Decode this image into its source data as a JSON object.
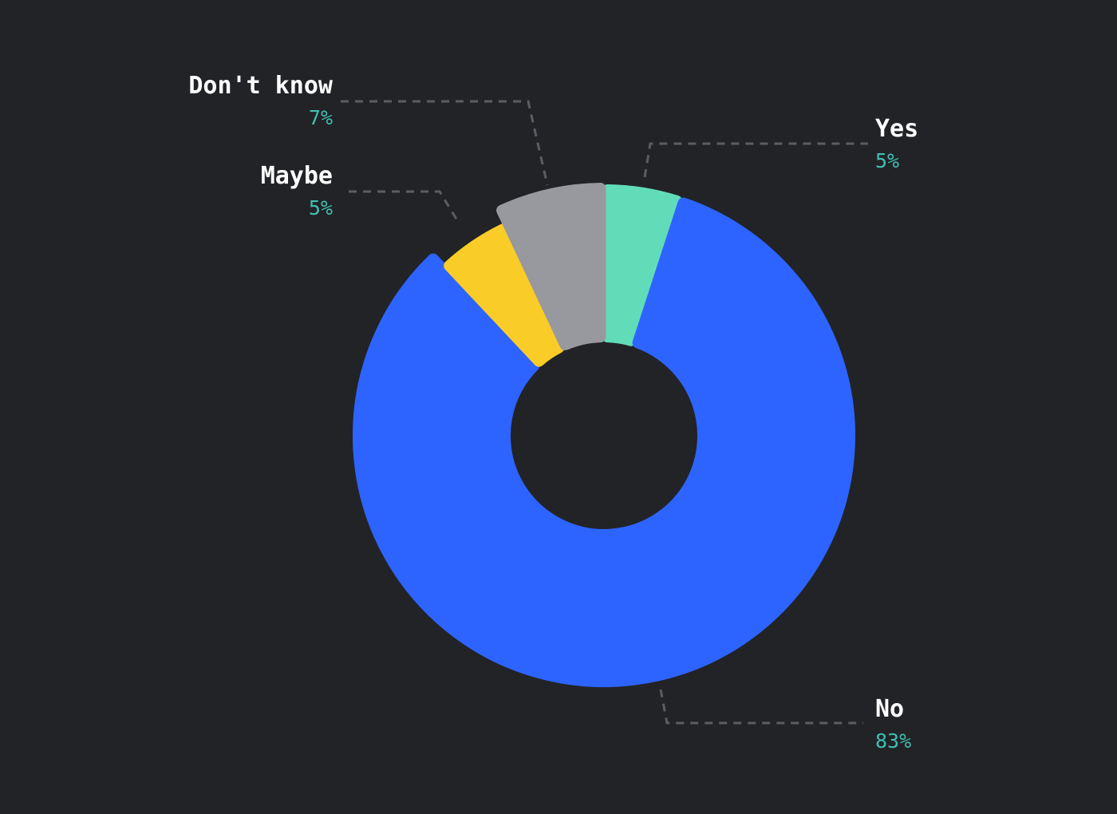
{
  "chart_data": {
    "type": "pie",
    "donut": true,
    "categories": [
      "No",
      "Maybe",
      "Don't know",
      "Yes"
    ],
    "values": [
      83,
      5,
      7,
      5
    ],
    "value_labels": [
      "83%",
      "5%",
      "7%",
      "5%"
    ],
    "colors": [
      "#2d64ff",
      "#facc27",
      "#98999e",
      "#61dcb9"
    ],
    "pct_color": "#3fc0b0",
    "label_color": "#ffffff",
    "background": "#222327",
    "legend": "none"
  }
}
